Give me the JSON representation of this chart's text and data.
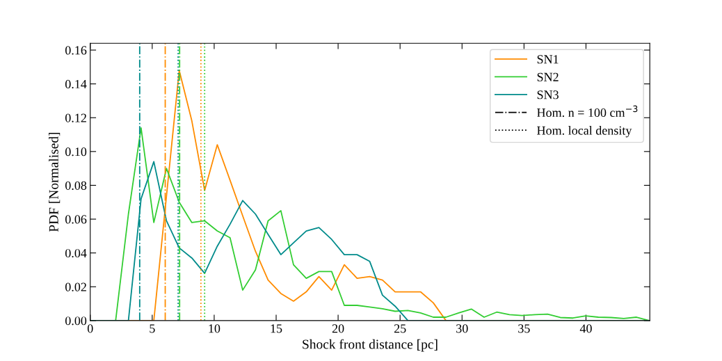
{
  "chart_data": {
    "type": "line",
    "xlabel": "Shock front distance [pc]",
    "ylabel": "PDF [Normalised]",
    "series": [
      {
        "name": "SN1",
        "color": "#ff8c00",
        "x": [
          0,
          5.13,
          7.18,
          8.2,
          9.23,
          10.25,
          11.28,
          12.3,
          13.33,
          14.35,
          15.38,
          16.4,
          17.43,
          18.45,
          19.48,
          20.5,
          21.53,
          22.55,
          23.58,
          24.6,
          25.63,
          26.65,
          27.68,
          28.7,
          45.1
        ],
        "values": [
          0,
          0,
          0.148,
          0.118,
          0.077,
          0.104,
          0.083,
          0.062,
          0.041,
          0.024,
          0.016,
          0.0115,
          0.017,
          0.026,
          0.018,
          0.033,
          0.025,
          0.026,
          0.024,
          0.017,
          0.017,
          0.017,
          0.0105,
          0,
          0
        ]
      },
      {
        "name": "SN2",
        "color": "#32cd32",
        "x": [
          0,
          2.05,
          3.08,
          4.1,
          5.13,
          6.15,
          7.18,
          8.2,
          9.23,
          10.25,
          11.28,
          12.3,
          13.33,
          14.35,
          15.38,
          16.4,
          17.43,
          18.45,
          19.48,
          20.5,
          21.53,
          22.55,
          23.58,
          24.6,
          25.63,
          26.65,
          27.68,
          28.7,
          29.73,
          30.75,
          31.78,
          32.8,
          33.83,
          34.85,
          35.88,
          36.9,
          37.93,
          38.95,
          39.98,
          41.0,
          42.03,
          43.05,
          44.08,
          45.1
        ],
        "values": [
          0,
          0,
          0.063,
          0.114,
          0.058,
          0.09,
          0.07,
          0.058,
          0.059,
          0.053,
          0.049,
          0.018,
          0.03,
          0.059,
          0.065,
          0.033,
          0.025,
          0.029,
          0.029,
          0.009,
          0.009,
          0.008,
          0.007,
          0.0055,
          0.006,
          0.0045,
          0.002,
          0.002,
          0.0045,
          0.0068,
          0.002,
          0.005,
          0.0035,
          0.003,
          0.0035,
          0.0038,
          0.0018,
          0.0015,
          0.0028,
          0.002,
          0.0018,
          0.0012,
          0.002,
          0
        ]
      },
      {
        "name": "SN3",
        "color": "#008b8b",
        "x": [
          0,
          3.08,
          4.1,
          5.13,
          6.15,
          7.18,
          8.2,
          9.23,
          10.25,
          11.28,
          12.3,
          13.33,
          14.35,
          15.38,
          16.4,
          17.43,
          18.45,
          19.48,
          20.5,
          21.53,
          22.55,
          23.58,
          24.6,
          25.63,
          45.1
        ],
        "values": [
          0,
          0,
          0.072,
          0.094,
          0.059,
          0.043,
          0.037,
          0.028,
          0.044,
          0.057,
          0.071,
          0.063,
          0.051,
          0.039,
          0.046,
          0.053,
          0.055,
          0.048,
          0.039,
          0.039,
          0.035,
          0.015,
          0.0085,
          0,
          0
        ]
      }
    ],
    "ref_lines": [
      {
        "axis": "x",
        "value": 6.05,
        "color": "#ff8c00",
        "line_style": "dashdot"
      },
      {
        "axis": "x",
        "value": 7.21,
        "color": "#32cd32",
        "line_style": "dashdot"
      },
      {
        "axis": "x",
        "value": 3.99,
        "color": "#008b8b",
        "line_style": "dashdot"
      },
      {
        "axis": "x",
        "value": 8.93,
        "color": "#ff8c00",
        "line_style": "dotted"
      },
      {
        "axis": "x",
        "value": 9.23,
        "color": "#32cd32",
        "line_style": "dotted"
      },
      {
        "axis": "x",
        "value": 7.09,
        "color": "#008b8b",
        "line_style": "dotted"
      }
    ],
    "annotations": [
      "Hom. n = 100 cm$^{−3}$",
      "Hom. local density"
    ],
    "xlim": [
      0,
      45.15
    ],
    "xticks": [
      0,
      5,
      10,
      15,
      20,
      25,
      30,
      35,
      40
    ],
    "ylim": [
      0,
      0.164
    ],
    "yticks": [
      {
        "value": 0,
        "label": "0.00"
      },
      {
        "value": 0.02,
        "label": "0.02"
      },
      {
        "value": 0.04,
        "label": "0.04"
      },
      {
        "value": 0.06,
        "label": "0.06"
      },
      {
        "value": 0.08,
        "label": "0.08"
      },
      {
        "value": 0.1,
        "label": "0.10"
      },
      {
        "value": 0.12,
        "label": "0.12"
      },
      {
        "value": 0.14,
        "label": "0.14"
      },
      {
        "value": 0.16,
        "label": "0.16"
      }
    ],
    "legend": "top right",
    "grid": false,
    "marker": "none",
    "line_style": "solid"
  }
}
